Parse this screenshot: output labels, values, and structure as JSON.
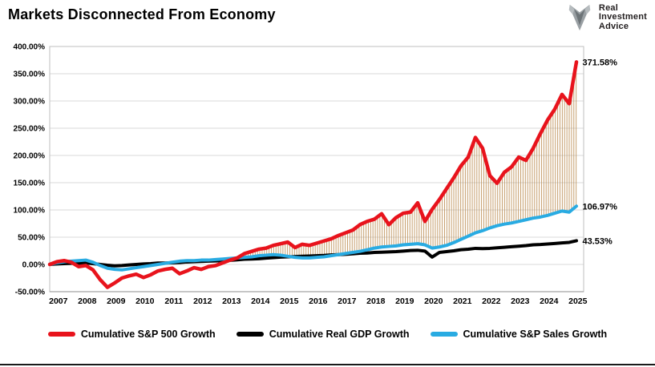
{
  "title": "Markets Disconnected From Economy",
  "logo": {
    "line1": "Real",
    "line2": "Investment",
    "line3": "Advice"
  },
  "chart_data": {
    "type": "line",
    "title": "Markets Disconnected From Economy",
    "grid": true,
    "legend_position": "bottom",
    "xlim": [
      2007,
      2025.5
    ],
    "ylim": [
      -50,
      400
    ],
    "y_ticks": {
      "values": [
        400,
        350,
        300,
        250,
        200,
        150,
        100,
        50,
        0,
        -50
      ],
      "labels": [
        "400.00%",
        "350.00%",
        "300.00%",
        "250.00%",
        "200.00%",
        "150.00%",
        "100.00%",
        "50.00%",
        "0.00%",
        "-50.00%"
      ]
    },
    "x_year_labels": [
      "2007",
      "2008",
      "2009",
      "2010",
      "2011",
      "2012",
      "2013",
      "2014",
      "2015",
      "2016",
      "2017",
      "2018",
      "2019",
      "2020",
      "2021",
      "2022",
      "2023",
      "2024",
      "2025"
    ],
    "x": [
      2007,
      2007.25,
      2007.5,
      2007.75,
      2008,
      2008.25,
      2008.5,
      2008.75,
      2009,
      2009.25,
      2009.5,
      2009.75,
      2010,
      2010.25,
      2010.5,
      2010.75,
      2011,
      2011.25,
      2011.5,
      2011.75,
      2012,
      2012.25,
      2012.5,
      2012.75,
      2013,
      2013.25,
      2013.5,
      2013.75,
      2014,
      2014.25,
      2014.5,
      2014.75,
      2015,
      2015.25,
      2015.5,
      2015.75,
      2016,
      2016.25,
      2016.5,
      2016.75,
      2017,
      2017.25,
      2017.5,
      2017.75,
      2018,
      2018.25,
      2018.5,
      2018.75,
      2019,
      2019.25,
      2019.5,
      2019.75,
      2020,
      2020.25,
      2020.5,
      2020.75,
      2021,
      2021.25,
      2021.5,
      2021.75,
      2022,
      2022.25,
      2022.5,
      2022.75,
      2023,
      2023.25,
      2023.5,
      2023.75,
      2024,
      2024.25,
      2024.5,
      2024.75,
      2025,
      2025.25
    ],
    "series": [
      {
        "name": "Cumulative S&P 500 Growth",
        "color": "#e8131c",
        "end_label": "371.58%",
        "values": [
          0,
          5,
          7,
          4,
          -4,
          -2,
          -10,
          -28,
          -42,
          -34,
          -25,
          -21,
          -18,
          -24,
          -19,
          -12,
          -9,
          -7,
          -17,
          -12,
          -6,
          -9,
          -4,
          -2,
          3,
          8,
          12,
          20,
          24,
          28,
          30,
          35,
          38,
          41,
          31,
          37,
          35,
          39,
          43,
          47,
          53,
          58,
          63,
          73,
          79,
          83,
          93,
          73,
          86,
          94,
          96,
          113,
          79,
          101,
          119,
          139,
          159,
          181,
          197,
          233,
          213,
          163,
          149,
          169,
          179,
          197,
          191,
          213,
          240,
          265,
          285,
          312,
          295,
          371.58
        ]
      },
      {
        "name": "Cumulative Real GDP Growth",
        "color": "#000000",
        "end_label": "43.53%",
        "values": [
          0,
          1,
          1.5,
          2,
          2,
          2.5,
          1.5,
          0,
          -1.5,
          -2.5,
          -2,
          -1,
          0,
          1,
          1.5,
          2.5,
          2.5,
          3,
          3.5,
          4.5,
          5,
          5.5,
          6,
          6.5,
          7,
          7.5,
          8.5,
          9.5,
          10,
          10.5,
          11.5,
          12.5,
          13.5,
          14,
          14.5,
          15,
          15.5,
          16,
          16.5,
          17.5,
          18,
          18.5,
          19.5,
          20.5,
          21,
          22,
          22.5,
          23,
          23.5,
          24.5,
          25.5,
          26,
          24.5,
          13.5,
          22,
          23.5,
          25,
          27,
          28,
          29.5,
          29,
          29.5,
          30.5,
          31.5,
          32.5,
          33.5,
          34.5,
          36,
          36.5,
          37.5,
          38.5,
          39.5,
          40.5,
          43.53
        ]
      },
      {
        "name": "Cumulative S&P Sales Growth",
        "color": "#29abe2",
        "end_label": "106.97%",
        "values": [
          0,
          3,
          5,
          6,
          7,
          8,
          4,
          -2,
          -7,
          -9,
          -10,
          -8,
          -6,
          -4,
          -2,
          0,
          2,
          4,
          6,
          7,
          7,
          8,
          8,
          9,
          10,
          11,
          12,
          13,
          14,
          16,
          17,
          18,
          17,
          15,
          13,
          12,
          12,
          13,
          14,
          16,
          18,
          20,
          22,
          24,
          27,
          30,
          32,
          33,
          34,
          36,
          37,
          38,
          36,
          30,
          32,
          35,
          40,
          46,
          52,
          58,
          62,
          67,
          71,
          74,
          76,
          79,
          82,
          85,
          87,
          90,
          94,
          98,
          96,
          106.97
        ]
      }
    ],
    "gap_hatch": {
      "between": [
        "Cumulative S&P 500 Growth",
        "Cumulative S&P Sales Growth"
      ],
      "color": "#b9884a",
      "from_x": 2013
    }
  }
}
